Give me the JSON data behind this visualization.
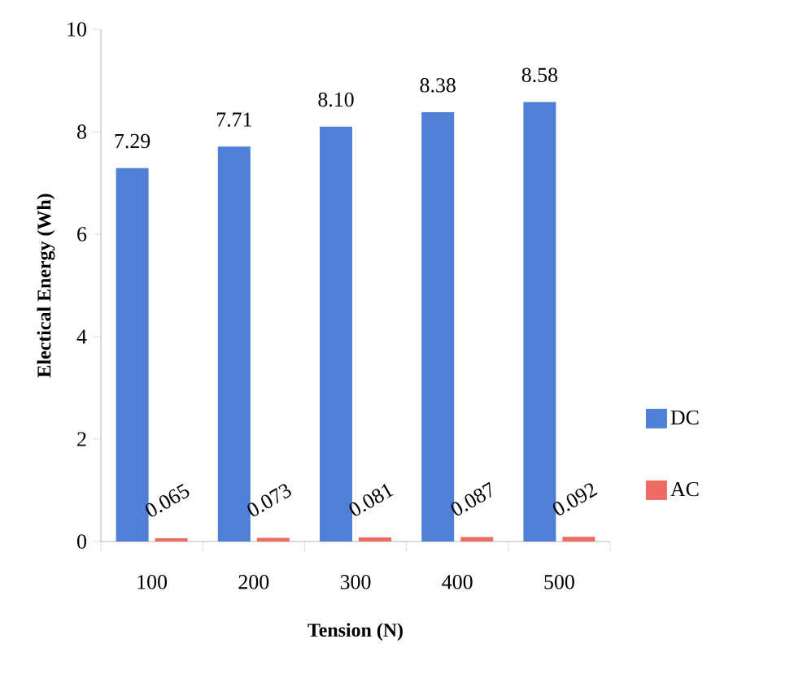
{
  "chart_data": {
    "type": "bar",
    "xlabel": "Tension (N)",
    "ylabel": "Electical Energy (Wh)",
    "categories": [
      "100",
      "200",
      "300",
      "400",
      "500"
    ],
    "series": [
      {
        "name": "DC",
        "color": "#4f7fd6",
        "values": [
          7.29,
          7.71,
          8.1,
          8.38,
          8.58
        ],
        "value_labels": [
          "7.29",
          "7.71",
          "8.10",
          "8.38",
          "8.58"
        ]
      },
      {
        "name": "AC",
        "color": "#ee6b63",
        "values": [
          0.065,
          0.073,
          0.081,
          0.087,
          0.092
        ],
        "value_labels": [
          "0.065",
          "0.073",
          "0.081",
          "0.087",
          "0.092"
        ]
      }
    ],
    "ylim": [
      0,
      10
    ],
    "yticks": [
      0,
      2,
      4,
      6,
      8,
      10
    ],
    "grid": false,
    "legend": "right"
  }
}
